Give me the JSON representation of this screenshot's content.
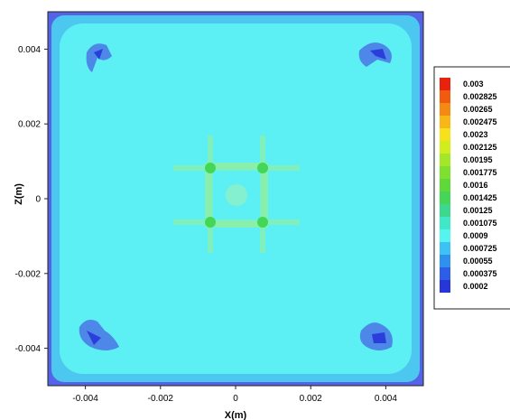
{
  "chart_data": {
    "type": "heatmap",
    "title": "",
    "xlabel": "X(m)",
    "ylabel": "Z(m)",
    "xlim": [
      -0.005,
      0.005
    ],
    "ylim": [
      -0.005,
      0.005
    ],
    "x_ticks": [
      {
        "value": -0.004,
        "label": "-0.004"
      },
      {
        "value": -0.002,
        "label": "-0.002"
      },
      {
        "value": 0,
        "label": "0"
      },
      {
        "value": 0.002,
        "label": "0.002"
      },
      {
        "value": 0.004,
        "label": "0.004"
      }
    ],
    "y_ticks": [
      {
        "value": 0.004,
        "label": "0.004"
      },
      {
        "value": 0.002,
        "label": "0.002"
      },
      {
        "value": 0,
        "label": "0"
      },
      {
        "value": -0.002,
        "label": "-0.002"
      },
      {
        "value": -0.004,
        "label": "-0.004"
      }
    ],
    "grid": false,
    "legend_position": "right",
    "colorbar_levels": [
      {
        "label": "0.003",
        "color": "#e8220c"
      },
      {
        "label": "0.002825",
        "color": "#f25a0f"
      },
      {
        "label": "0.00265",
        "color": "#f58a12"
      },
      {
        "label": "0.002475",
        "color": "#f8b617"
      },
      {
        "label": "0.0023",
        "color": "#f6e11c"
      },
      {
        "label": "0.002125",
        "color": "#d2ed1e"
      },
      {
        "label": "0.00195",
        "color": "#a4e628"
      },
      {
        "label": "0.001775",
        "color": "#7ee02f"
      },
      {
        "label": "0.0016",
        "color": "#5fd93a"
      },
      {
        "label": "0.001425",
        "color": "#44d657"
      },
      {
        "label": "0.00125",
        "color": "#3bd88d"
      },
      {
        "label": "0.001075",
        "color": "#3fe8c6"
      },
      {
        "label": "0.0009",
        "color": "#55f4ef"
      },
      {
        "label": "0.000725",
        "color": "#3ec2f5"
      },
      {
        "label": "0.00055",
        "color": "#3090ee"
      },
      {
        "label": "0.000375",
        "color": "#2c5ee8"
      },
      {
        "label": "0.0002",
        "color": "#2636d8"
      }
    ],
    "field_colors": {
      "background": "#5cf0f4",
      "edge_band": "#4cc7f0",
      "outer_edge": "#5563e6",
      "corner_patch": "#4a74e4",
      "center_cross": "#8eeea2",
      "center_dot": "#9ff0b2"
    }
  }
}
